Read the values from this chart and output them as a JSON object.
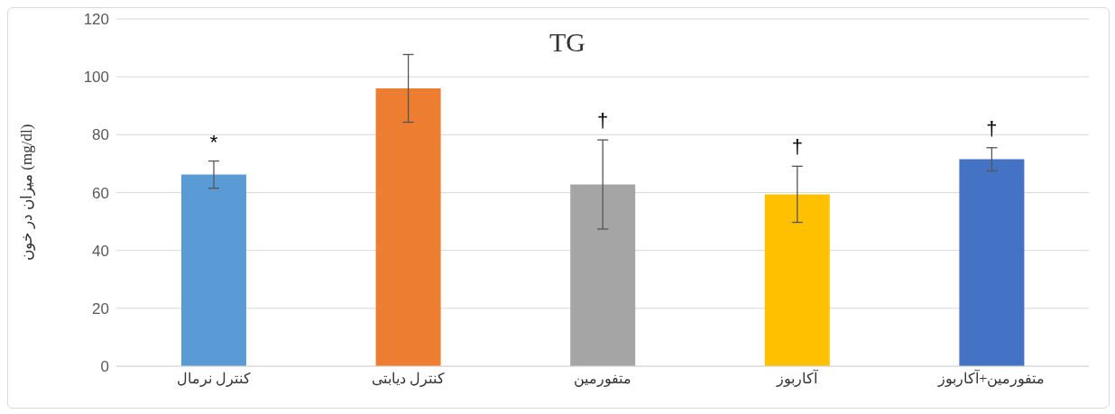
{
  "chart_data": {
    "type": "bar",
    "title": "TG",
    "ylabel": "میزان در خون (mg/dl)",
    "categories": [
      "کنترل نرمال",
      "کنترل دیابتی",
      "متفورمین",
      "آکاربوز",
      "متفورمین+آکاربوز"
    ],
    "values": [
      66.2,
      96,
      62.8,
      59.4,
      71.5
    ],
    "errors": [
      4.7,
      11.7,
      15.4,
      9.7,
      4
    ],
    "colors": [
      "#5b9bd5",
      "#ed7d31",
      "#a5a5a5",
      "#ffc000",
      "#4472c4"
    ],
    "value_labels": [
      "*",
      null,
      "†",
      "†",
      "†"
    ],
    "ylim": [
      0,
      120
    ],
    "yticks": [
      0,
      20,
      40,
      60,
      80,
      100,
      120
    ],
    "grid": "y"
  }
}
